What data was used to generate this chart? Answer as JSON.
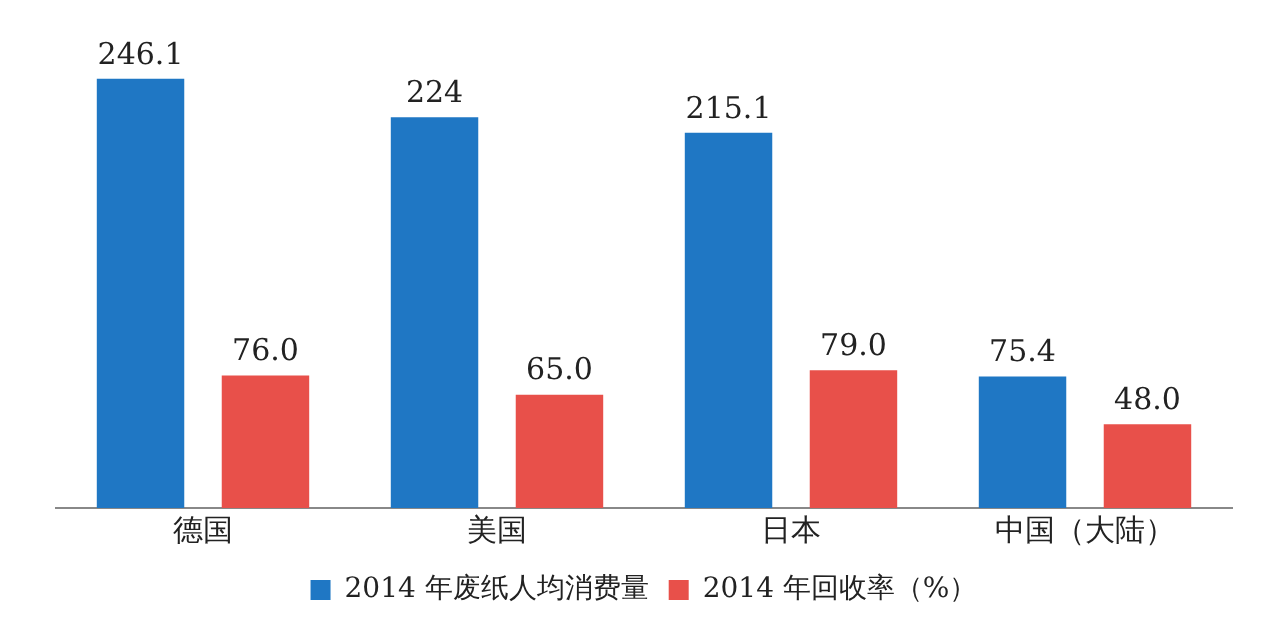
{
  "chart_data": {
    "type": "bar",
    "categories": [
      "德国",
      "美国",
      "日本",
      "中国（大陆）"
    ],
    "series": [
      {
        "name": "2014 年废纸人均消费量",
        "color": "#1f77c4",
        "values": [
          246.1,
          224,
          215.1,
          75.4
        ],
        "value_labels": [
          "246.1",
          "224",
          "215.1",
          "75.4"
        ]
      },
      {
        "name": "2014 年回收率（%）",
        "color": "#e8504a",
        "values": [
          76.0,
          65.0,
          79.0,
          48.0
        ],
        "value_labels": [
          "76.0",
          "65.0",
          "79.0",
          "48.0"
        ]
      }
    ],
    "legend": "bottom",
    "grid": false
  }
}
